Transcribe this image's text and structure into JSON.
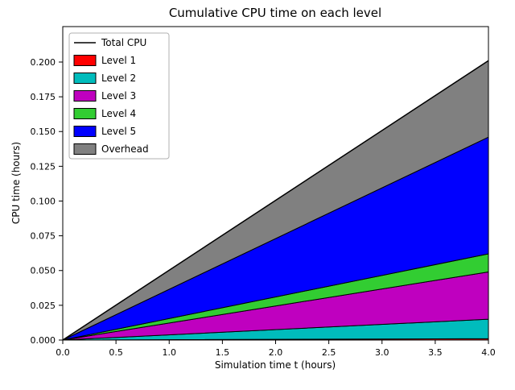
{
  "chart_data": {
    "type": "area",
    "title": "Cumulative CPU time on each level",
    "xlabel": "Simulation time t (hours)",
    "ylabel": "CPU time (hours)",
    "xlim": [
      0,
      4
    ],
    "ylim": [
      0,
      0.2255
    ],
    "x": [
      0,
      4
    ],
    "xticks": [
      0,
      0.5,
      1,
      1.5,
      2,
      2.5,
      3,
      3.5,
      4
    ],
    "xtick_labels": [
      "0.0",
      "0.5",
      "1.0",
      "1.5",
      "2.0",
      "2.5",
      "3.0",
      "3.5",
      "4.0"
    ],
    "yticks": [
      0,
      0.025,
      0.05,
      0.075,
      0.1,
      0.125,
      0.15,
      0.175,
      0.2
    ],
    "ytick_labels": [
      "0.000",
      "0.025",
      "0.050",
      "0.075",
      "0.100",
      "0.125",
      "0.150",
      "0.175",
      "0.200"
    ],
    "grid": false,
    "edge_color": "#000000",
    "series_shape": "stacked areas, each linear from 0 at t=0",
    "series": [
      {
        "name": "Level 1",
        "color": "#ff0000",
        "values": [
          0,
          0.001
        ]
      },
      {
        "name": "Level 2",
        "color": "#00bcbc",
        "values": [
          0,
          0.014
        ]
      },
      {
        "name": "Level 3",
        "color": "#bf00bf",
        "values": [
          0,
          0.034
        ]
      },
      {
        "name": "Level 4",
        "color": "#32cd32",
        "values": [
          0,
          0.013
        ]
      },
      {
        "name": "Level 5",
        "color": "#0000ff",
        "values": [
          0,
          0.084
        ]
      },
      {
        "name": "Overhead",
        "color": "#808080",
        "values": [
          0,
          0.055
        ]
      }
    ],
    "total_line": {
      "name": "Total CPU",
      "color": "#000000",
      "values": [
        0,
        0.201
      ]
    },
    "legend": {
      "position": "upper left",
      "entries": [
        "Total CPU",
        "Level 1",
        "Level 2",
        "Level 3",
        "Level 4",
        "Level 5",
        "Overhead"
      ]
    }
  }
}
